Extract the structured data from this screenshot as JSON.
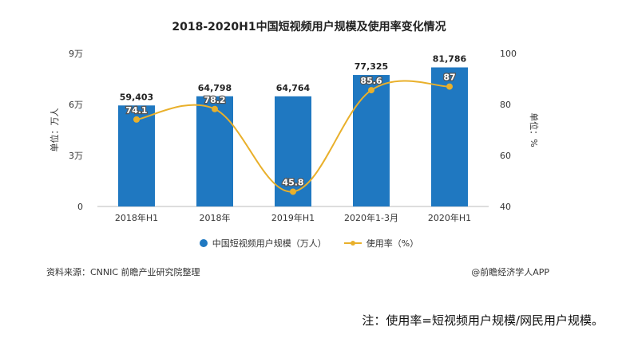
{
  "chart_data": {
    "type": "bar",
    "title": "2018-2020H1中国短视频用户规模及使用率变化情况",
    "categories": [
      "2018年H1",
      "2018年",
      "2019年H1",
      "2020年1-3月",
      "2020年H1"
    ],
    "series": [
      {
        "name": "中国短视频用户规模（万人）",
        "type": "bar",
        "axis": "left",
        "values": [
          59403,
          64798,
          64764,
          77325,
          81786
        ],
        "labels": [
          "59,403",
          "64,798",
          "64,764",
          "77,325",
          "81,786"
        ]
      },
      {
        "name": "使用率（%）",
        "type": "line",
        "axis": "right",
        "values": [
          74.1,
          78.2,
          45.8,
          85.6,
          87
        ],
        "labels": [
          "74.1",
          "78.2",
          "45.8",
          "85.6",
          "87"
        ]
      }
    ],
    "ylabel_left": "单位：万人",
    "ylabel_right": "单位：%",
    "ylim_left": [
      0,
      90000
    ],
    "yticks_left": [
      0,
      30000,
      60000,
      90000
    ],
    "yticks_left_labels": [
      "0",
      "3万",
      "6万",
      "9万"
    ],
    "ylim_right": [
      40,
      100
    ],
    "yticks_right": [
      40,
      60,
      80,
      100
    ],
    "yticks_right_labels": [
      "40",
      "60",
      "80",
      "100"
    ],
    "grid": false,
    "legend_position": "bottom",
    "colors": {
      "bar": "#1F78C1",
      "line": "#E9B02B"
    }
  },
  "footer": {
    "source": "资料来源：CNNIC 前瞻产业研究院整理",
    "brand": "@前瞻经济学人APP",
    "note": "注：使用率=短视频用户规模/网民用户规模。"
  }
}
